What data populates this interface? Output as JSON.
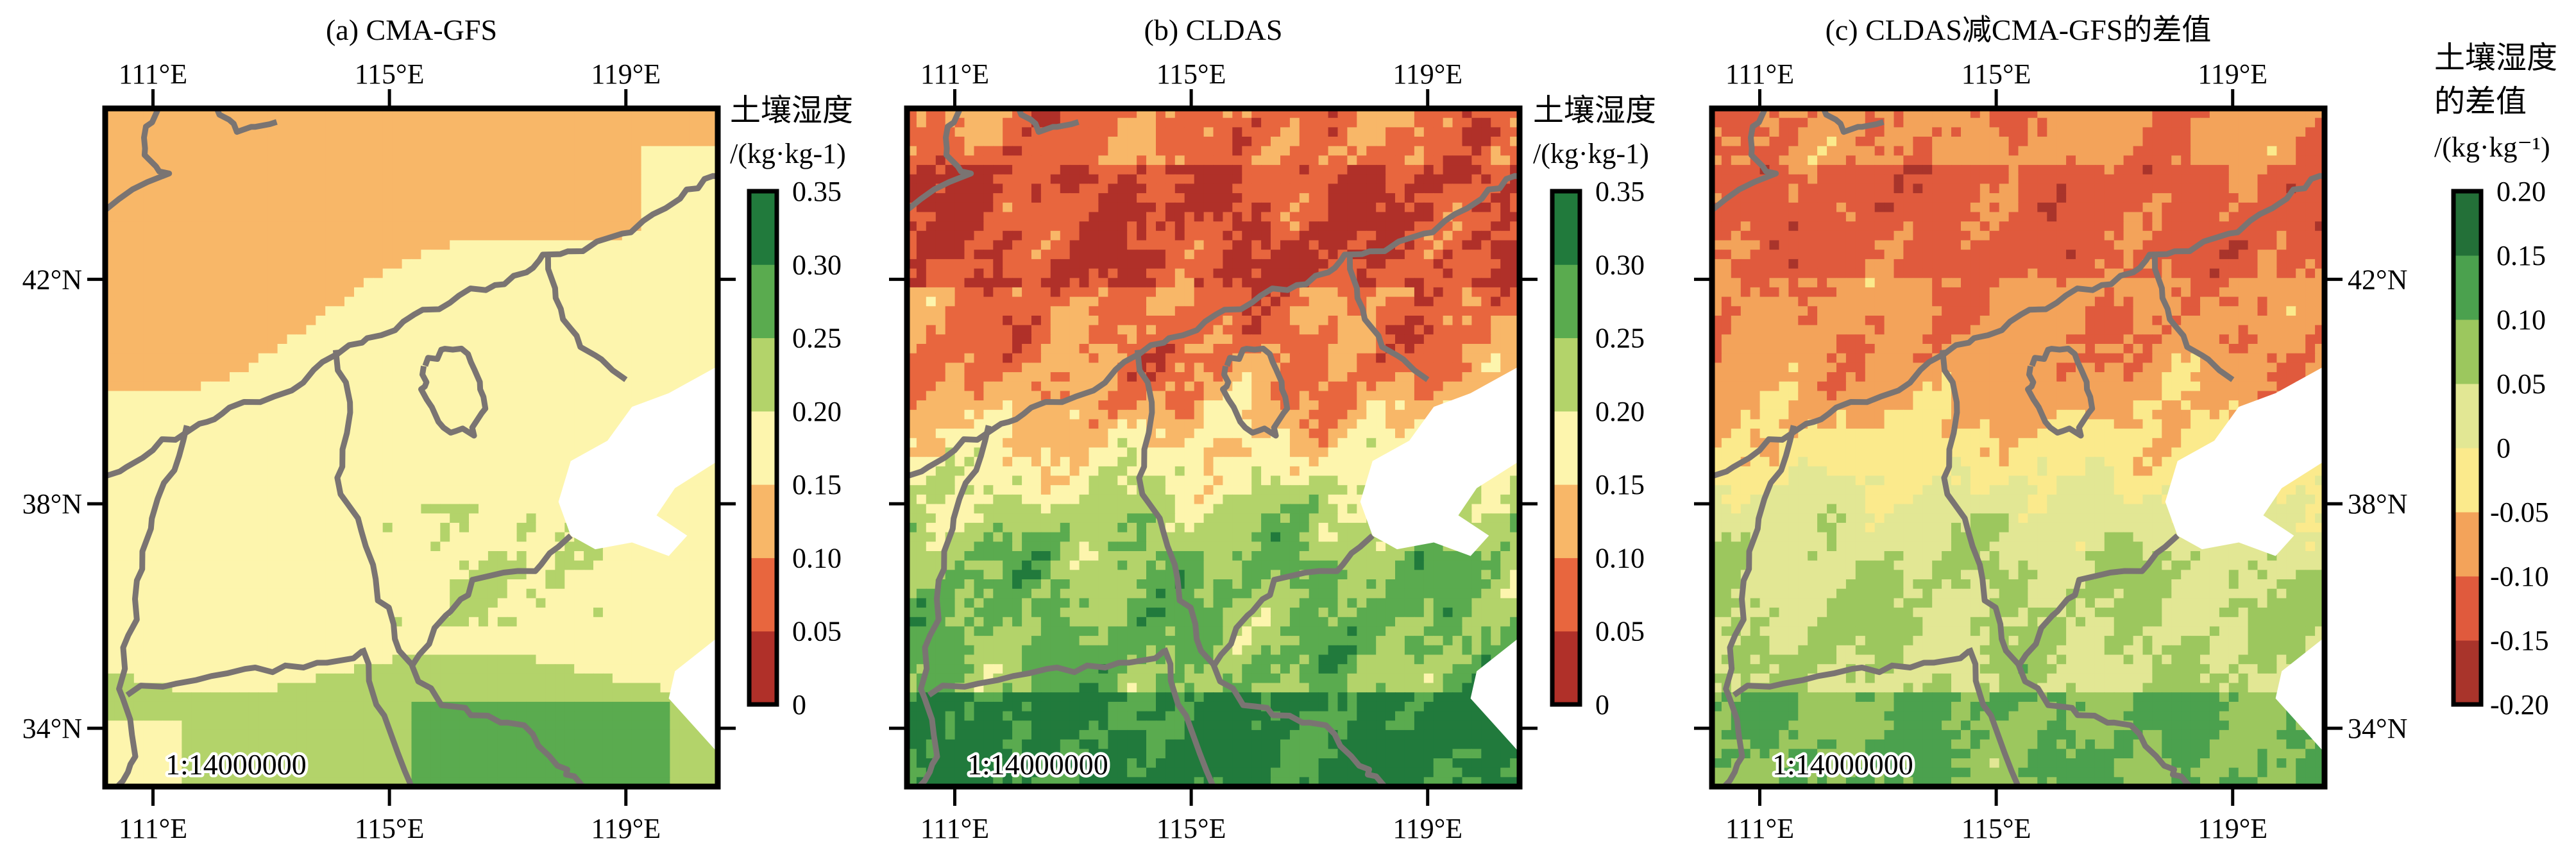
{
  "chart_data": [
    {
      "type": "heatmap",
      "title": "(a) CMA-GFS",
      "colorbar": {
        "title_lines": [
          "土壤湿度",
          "/(kg·kg-1)"
        ],
        "levels": [
          0,
          0.05,
          0.1,
          0.15,
          0.2,
          0.25,
          0.3,
          0.35
        ],
        "tick_labels": [
          "0",
          "0.05",
          "0.10",
          "0.15",
          "0.20",
          "0.25",
          "0.30",
          "0.35"
        ],
        "colors": [
          "#b03029",
          "#e8663e",
          "#f8b768",
          "#fdf5ad",
          "#b3d36a",
          "#5aab4f",
          "#217a3c"
        ]
      },
      "x_ticks": [
        "111°E",
        "115°E",
        "119°E"
      ],
      "y_ticks": [
        "42°N",
        "38°N",
        "34°N"
      ],
      "x_tick_values": [
        111,
        115,
        119
      ],
      "y_tick_values": [
        42,
        38,
        34
      ],
      "scale_text": "1:14000000",
      "field": "a"
    },
    {
      "type": "heatmap",
      "title": "(b) CLDAS",
      "colorbar": {
        "title_lines": [
          "土壤湿度",
          "/(kg·kg-1)"
        ],
        "levels": [
          0,
          0.05,
          0.1,
          0.15,
          0.2,
          0.25,
          0.3,
          0.35
        ],
        "tick_labels": [
          "0",
          "0.05",
          "0.10",
          "0.15",
          "0.20",
          "0.25",
          "0.30",
          "0.35"
        ],
        "colors": [
          "#b03029",
          "#e8663e",
          "#f8b768",
          "#fdf5ad",
          "#b3d36a",
          "#5aab4f",
          "#217a3c"
        ]
      },
      "x_ticks": [
        "111°E",
        "115°E",
        "119°E"
      ],
      "y_ticks": [
        "42°N",
        "38°N",
        "34°N"
      ],
      "x_tick_values": [
        111,
        115,
        119
      ],
      "y_tick_values": [
        42,
        38,
        34
      ],
      "scale_text": "1:14000000",
      "field": "b"
    },
    {
      "type": "heatmap",
      "title": "(c) CLDAS减CMA-GFS的差值",
      "colorbar": {
        "title_lines": [
          "土壤湿度",
          "的差值",
          "/(kg·kg⁻¹)"
        ],
        "levels": [
          -0.2,
          -0.15,
          -0.1,
          -0.05,
          0,
          0.05,
          0.1,
          0.15,
          0.2
        ],
        "tick_labels": [
          "-0.20",
          "-0.15",
          "-0.10",
          "-0.05",
          "0",
          "0.05",
          "0.10",
          "0.15",
          "0.20"
        ],
        "colors": [
          "#a9342b",
          "#e05a3d",
          "#f3a35a",
          "#fbea8c",
          "#e2e794",
          "#9cc75e",
          "#4ba14e",
          "#237038"
        ]
      },
      "x_ticks": [
        "111°E",
        "115°E",
        "119°E"
      ],
      "y_ticks": [
        "42°N",
        "38°N",
        "34°N"
      ],
      "x_tick_values": [
        111,
        115,
        119
      ],
      "y_tick_values": [
        42,
        38,
        34
      ],
      "scale_text": "1:14000000",
      "field": "c"
    }
  ],
  "colors": {
    "border": "#7a7472",
    "sea": "#ffffff",
    "frame": "#000000"
  }
}
